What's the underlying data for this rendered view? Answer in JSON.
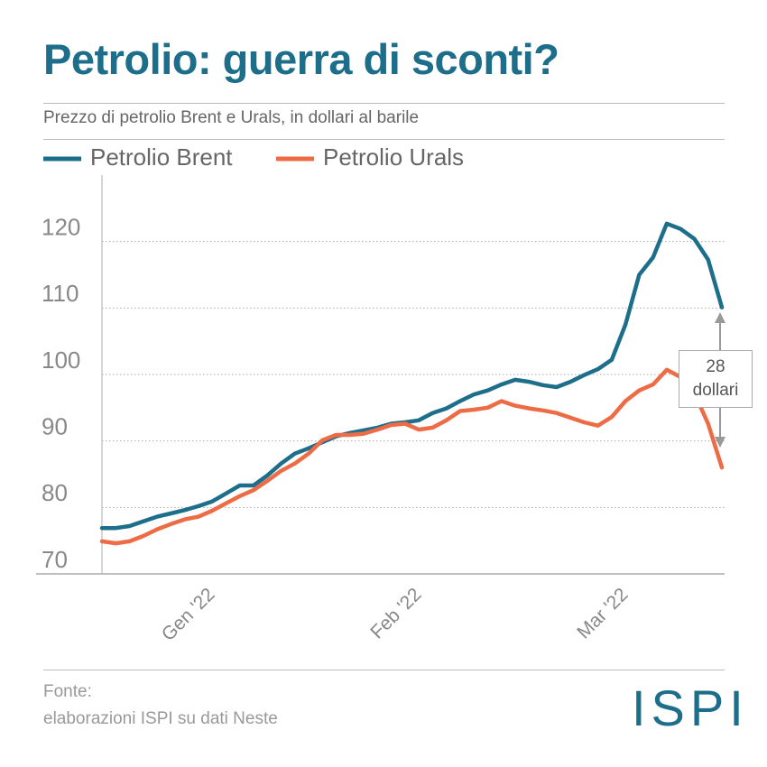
{
  "chart_data": {
    "type": "line",
    "title": "Petrolio: guerra di sconti?",
    "subtitle": "Prezzo di petrolio Brent e Urals, in dollari al barile",
    "categories": [
      null,
      null,
      null,
      null,
      null,
      null,
      null,
      null,
      "Gen '22",
      null,
      null,
      null,
      null,
      null,
      null,
      null,
      null,
      null,
      null,
      null,
      null,
      null,
      null,
      "Feb '22",
      null,
      null,
      null,
      null,
      null,
      null,
      null,
      null,
      null,
      null,
      null,
      null,
      null,
      null,
      "Mar '22",
      null,
      null,
      null,
      null,
      null,
      null,
      null
    ],
    "series": [
      {
        "name": "Petrolio Brent",
        "color": "#1d6e8a",
        "values": [
          76.9,
          76.9,
          77.2,
          77.9,
          78.6,
          79.1,
          79.6,
          80.2,
          80.9,
          82.1,
          83.3,
          83.3,
          84.8,
          86.6,
          88.1,
          88.9,
          89.8,
          90.7,
          91.2,
          91.6,
          92.0,
          92.6,
          92.8,
          93.1,
          94.2,
          94.9,
          96.0,
          97.0,
          97.6,
          98.5,
          99.2,
          98.9,
          98.4,
          98.1,
          98.9,
          99.9,
          100.8,
          102.2,
          107.5,
          115.0,
          117.6,
          122.7,
          121.9,
          120.4,
          117.3,
          110.1
        ]
      },
      {
        "name": "Petrolio Urals",
        "color": "#ee6c45",
        "values": [
          74.9,
          74.6,
          74.9,
          75.7,
          76.7,
          77.5,
          78.2,
          78.6,
          79.5,
          80.6,
          81.7,
          82.6,
          84.0,
          85.5,
          86.6,
          88.1,
          90.1,
          90.9,
          90.9,
          91.1,
          91.7,
          92.4,
          92.6,
          91.7,
          92.0,
          93.1,
          94.5,
          94.7,
          95.0,
          96.0,
          95.3,
          94.9,
          94.6,
          94.2,
          93.5,
          92.8,
          92.3,
          93.6,
          96.0,
          97.6,
          98.5,
          100.7,
          99.6,
          97.2,
          92.6,
          86.0
        ]
      }
    ],
    "ylim": [
      70,
      130
    ],
    "yticks": [
      70,
      80,
      90,
      100,
      110,
      120
    ],
    "grid": true,
    "annotation": "28 dollari",
    "source_label": "Fonte:",
    "source": "elaborazioni ISPI su dati Neste",
    "logo": "ISPI"
  }
}
